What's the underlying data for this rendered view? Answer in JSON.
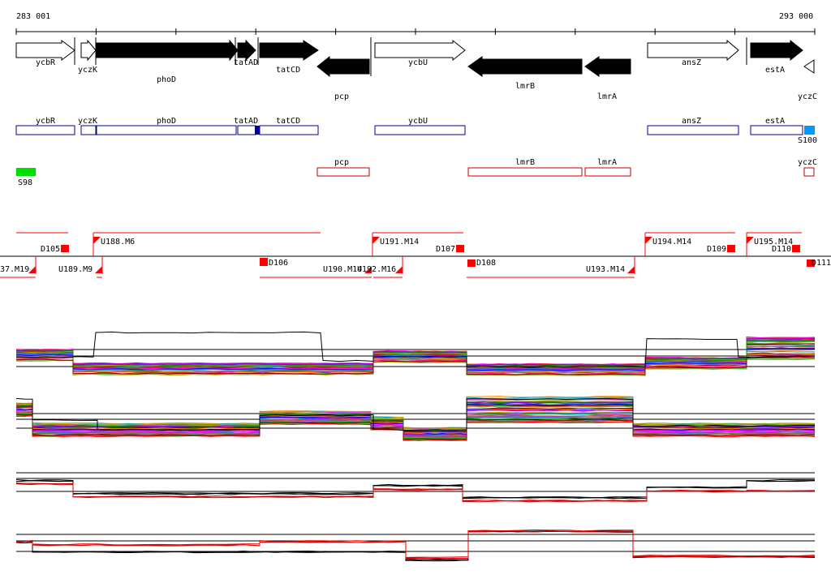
{
  "coords": {
    "start": "283 001",
    "end": "293 000"
  },
  "genes_forward": [
    {
      "label": "ycbR",
      "filled": false
    },
    {
      "label": "yczK",
      "filled": false
    },
    {
      "label": "phoD",
      "filled": true
    },
    {
      "label": "tatAD",
      "filled": true
    },
    {
      "label": "tatCD",
      "filled": true
    },
    {
      "label": "ycbU",
      "filled": false
    },
    {
      "label": "ansZ",
      "filled": false
    },
    {
      "label": "estA",
      "filled": true
    }
  ],
  "genes_reverse": [
    {
      "label": "pcp",
      "filled": true
    },
    {
      "label": "lmrB",
      "filled": true
    },
    {
      "label": "lmrA",
      "filled": true
    },
    {
      "label": "yczC",
      "filled": false
    }
  ],
  "boxes_blue": [
    "ycbR",
    "yczK",
    "phoD",
    "tatAD",
    "tatCD",
    "ycbU",
    "ansZ",
    "estA"
  ],
  "boxes_red": [
    "pcp",
    "lmrB",
    "lmrA",
    "yczC"
  ],
  "markers": {
    "s100": "S100",
    "s98": "S98"
  },
  "segments_top": [
    "D105",
    "U188.M6",
    "U191.M14",
    "D107",
    "U194.M14",
    "D109",
    "U195.M14",
    "D110"
  ],
  "segments_bottom": [
    "37.M19",
    "U189.M9",
    "D106",
    "U190.M14",
    "U192.M16",
    "D108",
    "U193.M14",
    "D111"
  ],
  "colors": {
    "blue_box": "#000099",
    "red": "#ff0000",
    "green": "#00dd00",
    "light_blue": "#0099ff"
  }
}
